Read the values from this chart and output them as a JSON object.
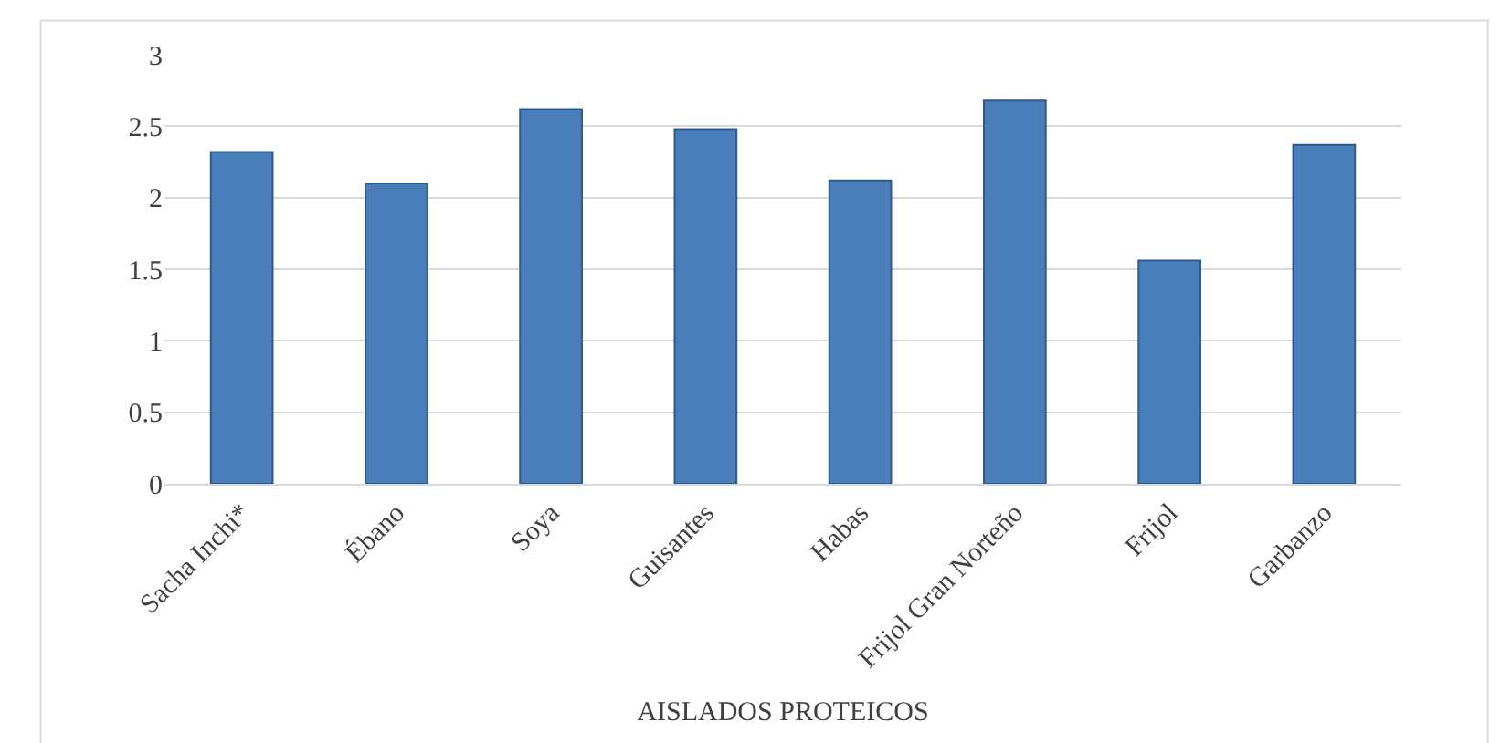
{
  "chart_data": {
    "type": "bar",
    "xlabel": "AISLADOS PROTEICOS",
    "categories": [
      "Sacha Inchi*",
      "Ébano",
      "Soya",
      "Guisantes",
      "Habas",
      "Frijol Gran Norteño",
      "Frijol",
      "Garbanzo"
    ],
    "values": [
      2.32,
      2.1,
      2.62,
      2.48,
      2.12,
      2.68,
      1.56,
      2.37
    ],
    "color": "#4a7ebb",
    "ylim": [
      0,
      3
    ],
    "yticks": [
      0,
      0.5,
      1,
      1.5,
      2,
      2.5,
      3
    ],
    "grid": "y"
  }
}
